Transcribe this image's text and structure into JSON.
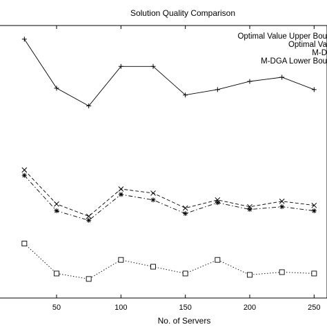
{
  "chart_data": {
    "type": "line",
    "title": "Solution Quality Comparison",
    "xlabel": "No. of Servers",
    "ylabel": "",
    "xlim": [
      5,
      260
    ],
    "ylim": [
      0,
      100
    ],
    "grid": false,
    "legend_position": "top-right",
    "x_ticks": [
      50,
      100,
      150,
      200,
      250
    ],
    "x_tick_labels": [
      "50",
      "100",
      "150",
      "200",
      "250"
    ],
    "x": [
      25,
      50,
      75,
      100,
      125,
      150,
      175,
      200,
      225,
      250
    ],
    "legend_entries": [
      "Optimal Value Upper Bou",
      "Optimal Va",
      "M-D",
      "M-DGA Lower Bou"
    ],
    "series": [
      {
        "name": "Optimal Value Upper Bou",
        "marker": "+",
        "dash": "solid",
        "values": [
          95.0,
          77.0,
          70.5,
          85.0,
          85.0,
          74.5,
          76.5,
          79.5,
          81.0,
          76.5
        ]
      },
      {
        "name": "Optimal Va",
        "marker": "x",
        "dash": "dashed",
        "values": [
          47.0,
          34.5,
          30.0,
          40.0,
          38.5,
          33.0,
          36.0,
          33.5,
          35.5,
          34.0
        ]
      },
      {
        "name": "M-D",
        "marker": "*",
        "dash": "dashdot",
        "values": [
          45.0,
          32.0,
          28.5,
          38.0,
          36.0,
          31.0,
          35.0,
          32.5,
          33.5,
          32.0
        ]
      },
      {
        "name": "M-DGA Lower Bou",
        "marker": "square",
        "dash": "dotted",
        "values": [
          20.0,
          9.0,
          7.0,
          14.0,
          11.5,
          9.0,
          14.0,
          8.5,
          9.5,
          9.0
        ]
      }
    ]
  }
}
